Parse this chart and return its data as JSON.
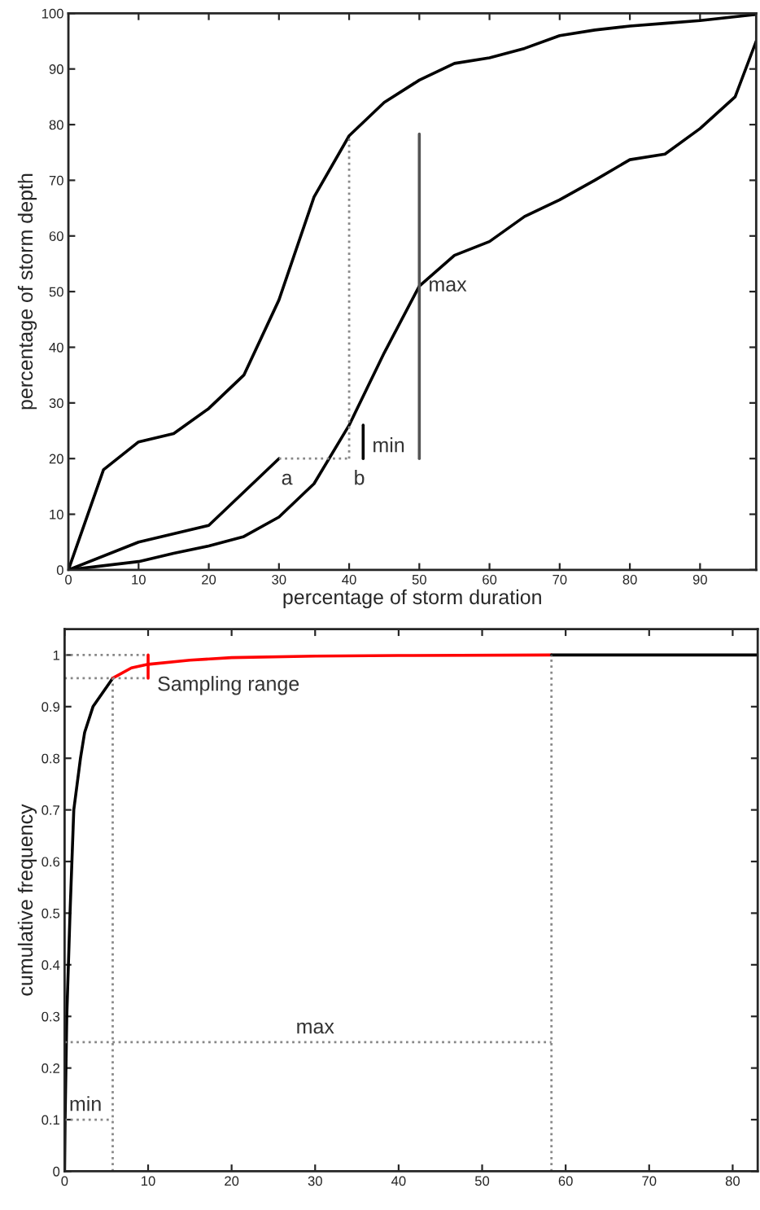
{
  "chart_data": [
    {
      "type": "line",
      "xlabel": "percentage of storm duration",
      "ylabel": "percentage of storm depth",
      "xlim": [
        0,
        98
      ],
      "ylim": [
        0,
        100
      ],
      "xticks": [
        0,
        10,
        20,
        30,
        40,
        50,
        60,
        70,
        80,
        90
      ],
      "yticks": [
        0,
        10,
        20,
        30,
        40,
        50,
        60,
        70,
        80,
        90,
        100
      ],
      "grid": false,
      "legend": false,
      "series": [
        {
          "color": "#000000",
          "x": [
            0,
            5,
            10,
            15,
            20,
            25,
            30,
            35,
            40,
            45,
            50,
            55,
            60,
            65,
            70,
            75,
            80,
            85,
            90,
            98
          ],
          "values": [
            0,
            18,
            23,
            24.5,
            29,
            35,
            48.5,
            67,
            78,
            84,
            88,
            91,
            92,
            93.7,
            96,
            97,
            97.7,
            98.2,
            98.7,
            99.8
          ]
        },
        {
          "color": "#000000",
          "x": [
            0,
            10,
            15,
            20,
            25,
            30,
            35,
            40,
            45,
            50,
            55,
            60,
            65,
            70,
            75,
            80,
            85,
            90,
            95,
            98
          ],
          "values": [
            0,
            1.5,
            3,
            4.3,
            6,
            9.5,
            15.5,
            26,
            39,
            51,
            56.5,
            59,
            63.5,
            66.5,
            70,
            73.7,
            74.7,
            79.3,
            85,
            95
          ]
        },
        {
          "color": "#000000",
          "x": [
            0,
            10,
            20,
            30
          ],
          "values": [
            0,
            5,
            8,
            20
          ]
        },
        {
          "color": "#888888",
          "line_style": "dotted",
          "x": [
            30,
            40
          ],
          "values": [
            20,
            20
          ]
        },
        {
          "color": "#888888",
          "line_style": "dotted",
          "x": [
            40,
            40
          ],
          "values": [
            20,
            78
          ]
        },
        {
          "color": "#000000",
          "x": [
            42,
            42
          ],
          "values": [
            20,
            26
          ]
        },
        {
          "color": "#555555",
          "x": [
            50,
            50
          ],
          "values": [
            20,
            78.3
          ]
        }
      ],
      "annotations": [
        {
          "text": "a",
          "x": 30,
          "y": 20
        },
        {
          "text": "b",
          "x": 40,
          "y": 20
        },
        {
          "text": "min",
          "x": 42,
          "y": 20
        },
        {
          "text": "max",
          "x": 50,
          "y": 51
        }
      ]
    },
    {
      "type": "line",
      "ylabel": "cumulative frequency",
      "xlim": [
        0,
        83
      ],
      "ylim": [
        0,
        1.05
      ],
      "xticks": [
        0,
        10,
        20,
        30,
        40,
        50,
        60,
        70,
        80
      ],
      "yticks": [
        0,
        0.1,
        0.2,
        0.3,
        0.4,
        0.5,
        0.6,
        0.7,
        0.8,
        0.9,
        1
      ],
      "grid": false,
      "legend": false,
      "series": [
        {
          "color": "#000000",
          "x": [
            0,
            0.06,
            0.26,
            0.65,
            1.1,
            1.9,
            2.4,
            3.4,
            5.76
          ],
          "values": [
            0,
            0.1,
            0.3,
            0.5,
            0.7,
            0.8,
            0.85,
            0.9,
            0.955
          ]
        },
        {
          "color": "#ff0000",
          "x": [
            5.76,
            8,
            10,
            15,
            20,
            30,
            40,
            58.3
          ],
          "values": [
            0.955,
            0.975,
            0.982,
            0.99,
            0.995,
            0.998,
            0.999,
            1
          ]
        },
        {
          "color": "#000000",
          "x": [
            58.3,
            83
          ],
          "values": [
            1,
            1
          ]
        },
        {
          "color": "#888888",
          "line_style": "dotted",
          "x": [
            0,
            10
          ],
          "values": [
            1,
            1
          ]
        },
        {
          "color": "#888888",
          "line_style": "dotted",
          "x": [
            0,
            10
          ],
          "values": [
            0.955,
            0.955
          ]
        },
        {
          "color": "#888888",
          "line_style": "dotted",
          "x": [
            5.76,
            5.76
          ],
          "values": [
            0,
            0.955
          ]
        },
        {
          "color": "#888888",
          "line_style": "dotted",
          "x": [
            58.3,
            58.3
          ],
          "values": [
            0,
            1
          ]
        },
        {
          "color": "#888888",
          "line_style": "dotted",
          "x": [
            0,
            58.3
          ],
          "values": [
            0.25,
            0.25
          ]
        },
        {
          "color": "#888888",
          "line_style": "dotted",
          "x": [
            0,
            5.76
          ],
          "values": [
            0.1,
            0.1
          ]
        },
        {
          "color": "#ff0000",
          "x": [
            10,
            10
          ],
          "values": [
            0.955,
            1
          ]
        }
      ],
      "annotations": [
        {
          "text": "Sampling range",
          "x": 10,
          "y": 0.955
        },
        {
          "text": "max",
          "x": 30,
          "y": 0.25
        },
        {
          "text": "min",
          "x": 0,
          "y": 0.1
        }
      ]
    }
  ]
}
